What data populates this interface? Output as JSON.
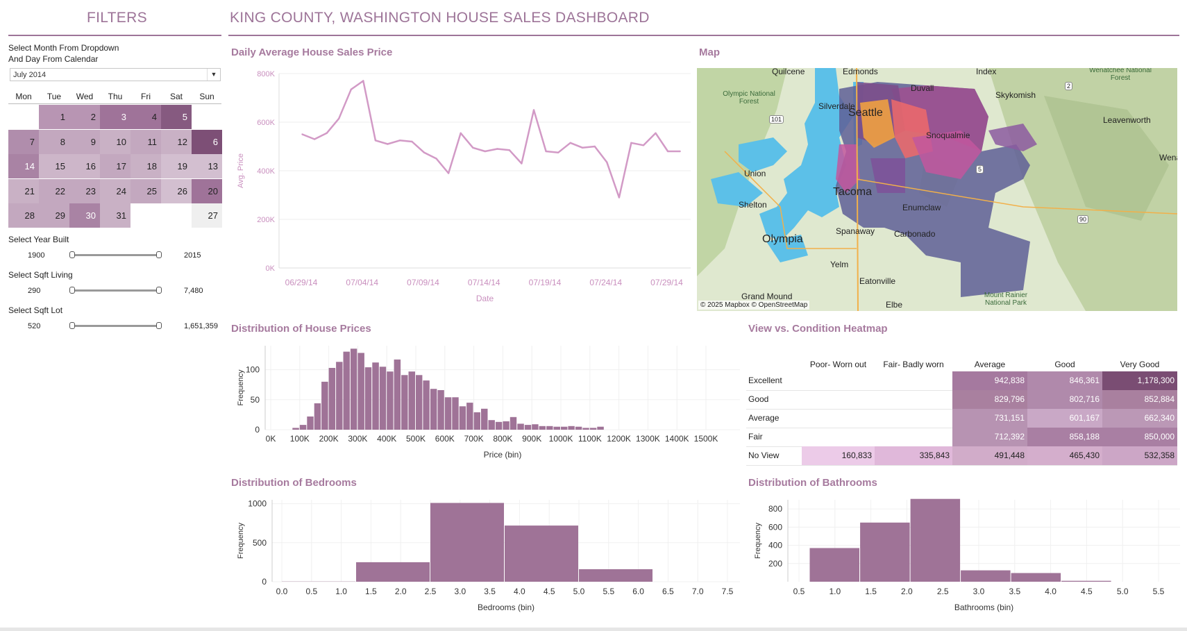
{
  "filters": {
    "title": "FILTERS",
    "month_prompt_line1": "Select Month From Dropdown",
    "month_prompt_line2": "And Day From Calendar",
    "month_value": "July 2014",
    "weekdays": [
      "Mon",
      "Tue",
      "Wed",
      "Thu",
      "Fri",
      "Sat",
      "Sun"
    ],
    "calendar": [
      {
        "day": "",
        "color": "#ffffff"
      },
      {
        "day": "1",
        "color": "#b895b3"
      },
      {
        "day": "2",
        "color": "#b895b3"
      },
      {
        "day": "3",
        "color": "#9f7399"
      },
      {
        "day": "4",
        "color": "#9f7399"
      },
      {
        "day": "5",
        "color": "#865a80"
      },
      {
        "day": "",
        "color": "#ffffff"
      },
      {
        "day": "7",
        "color": "#b08dac"
      },
      {
        "day": "8",
        "color": "#c3a8bf"
      },
      {
        "day": "9",
        "color": "#c3a8bf"
      },
      {
        "day": "10",
        "color": "#c9b1c5"
      },
      {
        "day": "11",
        "color": "#c3a8bf"
      },
      {
        "day": "12",
        "color": "#c9b1c5"
      },
      {
        "day": "6",
        "color": "#7d4f76"
      },
      {
        "day": "14",
        "color": "#a983a4"
      },
      {
        "day": "15",
        "color": "#cdb6c9"
      },
      {
        "day": "16",
        "color": "#cdb6c9"
      },
      {
        "day": "17",
        "color": "#c3a8bf"
      },
      {
        "day": "18",
        "color": "#c9b1c5"
      },
      {
        "day": "19",
        "color": "#d3bfd0"
      },
      {
        "day": "13",
        "color": "#d3bfd0"
      },
      {
        "day": "21",
        "color": "#c9b1c5"
      },
      {
        "day": "22",
        "color": "#c3a8bf"
      },
      {
        "day": "23",
        "color": "#c3a8bf"
      },
      {
        "day": "24",
        "color": "#c9b1c5"
      },
      {
        "day": "25",
        "color": "#c3a8bf"
      },
      {
        "day": "26",
        "color": "#d3bfd0"
      },
      {
        "day": "20",
        "color": "#9f7399"
      },
      {
        "day": "28",
        "color": "#c3a8bf"
      },
      {
        "day": "29",
        "color": "#c3a8bf"
      },
      {
        "day": "30",
        "color": "#a983a4"
      },
      {
        "day": "31",
        "color": "#c9b1c5"
      },
      {
        "day": "",
        "color": "#ffffff"
      },
      {
        "day": "",
        "color": "#ffffff"
      },
      {
        "day": "27",
        "color": "#efefef"
      }
    ],
    "sliders": [
      {
        "label": "Select Year Built",
        "min": "1900",
        "max": "2015",
        "low": 0.0,
        "high": 1.0
      },
      {
        "label": "Select Sqft Living",
        "min": "290",
        "max": "7,480",
        "low": 0.0,
        "high": 1.0
      },
      {
        "label": "Select Sqft Lot",
        "min": "520",
        "max": "1,651,359",
        "low": 0.0,
        "high": 1.0
      }
    ]
  },
  "dashboard_title": "KING COUNTY, WASHINGTON HOUSE SALES DASHBOARD",
  "map": {
    "title": "Map",
    "attribution": "© 2025 Mapbox © OpenStreetMap",
    "places": [
      "Quilcene",
      "Edmonds",
      "Index",
      "Olympic National Forest",
      "Silverdale",
      "Duvall",
      "Skykomish",
      "Seattle",
      "Snoqualmie",
      "Leavenworth",
      "Union",
      "Wenat",
      "Shelton",
      "Tacoma",
      "Enumclaw",
      "Spanaway",
      "Carbonado",
      "Olympia",
      "Yelm",
      "Eatonville",
      "Grand Mound",
      "Elbe",
      "Mount Rainier National Park",
      "Wenatchee National Forest",
      "101",
      "2",
      "90",
      "5"
    ]
  },
  "chart_data": [
    {
      "type": "line",
      "title": "Daily Average House Sales Price",
      "xlabel": "Date",
      "ylabel": "Avg. Price",
      "ylim": [
        0,
        800000
      ],
      "y_ticks": [
        "0K",
        "200K",
        "400K",
        "600K",
        "800K"
      ],
      "x_ticks": [
        "06/29/14",
        "07/04/14",
        "07/09/14",
        "07/14/14",
        "07/19/14",
        "07/24/14",
        "07/29/14"
      ],
      "x": [
        "06/30/14",
        "07/01/14",
        "07/02/14",
        "07/03/14",
        "07/04/14",
        "07/05/14",
        "07/06/14",
        "07/07/14",
        "07/08/14",
        "07/09/14",
        "07/10/14",
        "07/11/14",
        "07/12/14",
        "07/13/14",
        "07/14/14",
        "07/15/14",
        "07/16/14",
        "07/17/14",
        "07/18/14",
        "07/19/14",
        "07/20/14",
        "07/21/14",
        "07/22/14",
        "07/23/14",
        "07/24/14",
        "07/25/14",
        "07/26/14",
        "07/27/14",
        "07/28/14",
        "07/29/14",
        "07/30/14",
        "07/31/14"
      ],
      "values": [
        550000,
        530000,
        555000,
        615000,
        735000,
        770000,
        525000,
        510000,
        525000,
        520000,
        475000,
        450000,
        390000,
        555000,
        495000,
        480000,
        490000,
        485000,
        430000,
        650000,
        480000,
        475000,
        515000,
        495000,
        500000,
        435000,
        290000,
        515000,
        505000,
        555000,
        480000,
        480000
      ],
      "color": "#d29ac6"
    },
    {
      "type": "bar",
      "title": "Distribution of House Prices",
      "xlabel": "Price (bin)",
      "ylabel": "Frequency",
      "y_ticks": [
        "0",
        "50",
        "100"
      ],
      "ylim": [
        0,
        140
      ],
      "x_ticks": [
        "0K",
        "100K",
        "200K",
        "300K",
        "400K",
        "500K",
        "600K",
        "700K",
        "800K",
        "900K",
        "1000K",
        "1100K",
        "1200K",
        "1300K",
        "1400K",
        "1500K"
      ],
      "bin_width": 25000,
      "bins_start": 75000,
      "values": [
        3,
        8,
        22,
        44,
        80,
        103,
        113,
        130,
        135,
        128,
        104,
        112,
        105,
        97,
        117,
        91,
        97,
        91,
        82,
        68,
        66,
        54,
        54,
        39,
        45,
        29,
        35,
        16,
        13,
        14,
        21,
        10,
        8,
        9,
        6,
        6,
        5,
        5,
        6,
        5,
        3,
        3,
        5
      ],
      "color": "#9f7397"
    },
    {
      "type": "heatmap",
      "title": "View vs. Condition Heatmap",
      "columns": [
        "Poor- Worn out",
        "Fair- Badly worn",
        "Average",
        "Good",
        "Very Good"
      ],
      "rows": [
        {
          "label": "Excellent",
          "cells": [
            "",
            "",
            "942,838",
            "846,361",
            "1,178,300"
          ],
          "colors": [
            "",
            "",
            "#a5799f",
            "#b089ab",
            "#7a4d73"
          ]
        },
        {
          "label": "Good",
          "cells": [
            "",
            "",
            "829,796",
            "802,716",
            "852,884"
          ],
          "colors": [
            "",
            "",
            "#a9809f",
            "#b08aab",
            "#a9809f"
          ]
        },
        {
          "label": "Average",
          "cells": [
            "",
            "",
            "731,151",
            "601,167",
            "662,340"
          ],
          "colors": [
            "",
            "",
            "#b793b2",
            "#c9a8c6",
            "#bb98b6"
          ]
        },
        {
          "label": "Fair",
          "cells": [
            "",
            "",
            "712,392",
            "858,188",
            "850,000"
          ],
          "colors": [
            "",
            "",
            "#b793b2",
            "#a97fa3",
            "#a97fa3"
          ]
        },
        {
          "label": "No View",
          "cells": [
            "160,833",
            "335,843",
            "491,448",
            "465,430",
            "532,358"
          ],
          "colors": [
            "#eccbe8",
            "#e0b8da",
            "#d1acc9",
            "#d4aecc",
            "#cca6c6"
          ]
        }
      ]
    },
    {
      "type": "bar",
      "title": "Distribution of Bedrooms",
      "xlabel": "Bedrooms (bin)",
      "ylabel": "Frequency",
      "y_ticks": [
        "0",
        "500",
        "1000"
      ],
      "ylim": [
        0,
        1050
      ],
      "x_ticks": [
        "0.0",
        "0.5",
        "1.0",
        "1.5",
        "2.0",
        "2.5",
        "3.0",
        "3.5",
        "4.0",
        "4.5",
        "5.0",
        "5.5",
        "6.0",
        "6.5",
        "7.0",
        "7.5"
      ],
      "bins": [
        [
          0.0,
          1.25,
          3
        ],
        [
          1.25,
          2.5,
          250
        ],
        [
          2.5,
          3.75,
          1010
        ],
        [
          3.75,
          5.0,
          720
        ],
        [
          5.0,
          6.25,
          160
        ]
      ],
      "color": "#9f7397"
    },
    {
      "type": "bar",
      "title": "Distribution of Bathrooms",
      "xlabel": "Bathrooms (bin)",
      "ylabel": "Frequency",
      "y_ticks": [
        "200",
        "400",
        "600",
        "800"
      ],
      "ylim": [
        0,
        900
      ],
      "x_ticks": [
        "0.5",
        "1.0",
        "1.5",
        "2.0",
        "2.5",
        "3.0",
        "3.5",
        "4.0",
        "4.5",
        "5.0",
        "5.5"
      ],
      "bins": [
        [
          0.65,
          1.35,
          370
        ],
        [
          1.35,
          2.05,
          650
        ],
        [
          2.05,
          2.75,
          910
        ],
        [
          2.75,
          3.45,
          125
        ],
        [
          3.45,
          4.15,
          95
        ],
        [
          4.15,
          4.85,
          10
        ]
      ],
      "color": "#9f7397"
    }
  ]
}
